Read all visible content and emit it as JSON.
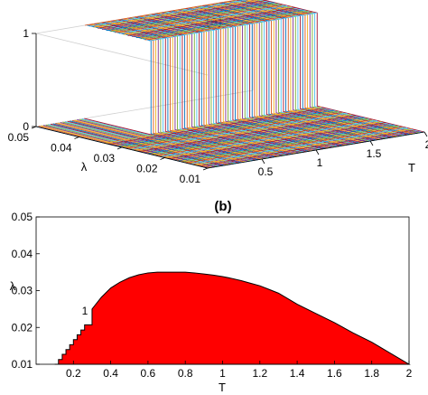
{
  "chart_data": [
    {
      "panel_label": "(a)",
      "type": "surface-3d",
      "x_axis": {
        "label": "T",
        "range": [
          0,
          2
        ],
        "ticks": [
          "0.5",
          "1",
          "1.5",
          "2"
        ]
      },
      "y_axis": {
        "label": "λ",
        "range": [
          0.01,
          0.05
        ],
        "ticks": [
          "0.05",
          "0.04",
          "0.03",
          "0.02",
          "0.01"
        ]
      },
      "z_axis": {
        "range": [
          0,
          1
        ],
        "ticks": [
          "1",
          "0"
        ]
      },
      "surface": {
        "low_value": 0,
        "high_value": 1,
        "step_at_lambda": 0.035,
        "step_T_range": [
          0.45,
          2
        ]
      },
      "colors": [
        "#0072bd",
        "#d95319",
        "#edb120",
        "#7e2f8e",
        "#77ac30",
        "#4dbeee",
        "#a2142f"
      ]
    },
    {
      "panel_label": "(b)",
      "type": "area",
      "x_axis": {
        "label": "T",
        "range": [
          0,
          2
        ],
        "ticks": [
          "0.2",
          "0.4",
          "0.6",
          "0.8",
          "1",
          "1.2",
          "1.4",
          "1.6",
          "1.8",
          "2"
        ]
      },
      "y_axis": {
        "label": "λ",
        "range": [
          0.01,
          0.05
        ],
        "ticks": [
          "0.01",
          "0.02",
          "0.03",
          "0.04",
          "0.05"
        ]
      },
      "region_value_label": "1",
      "fill_color": "#ff0000",
      "boundary": {
        "x": [
          0.1,
          0.12,
          0.14,
          0.16,
          0.18,
          0.2,
          0.22,
          0.24,
          0.26,
          0.3,
          0.35,
          0.4,
          0.45,
          0.5,
          0.55,
          0.6,
          0.65,
          0.7,
          0.8,
          0.85,
          0.9,
          0.95,
          1.0,
          1.05,
          1.1,
          1.15,
          1.2,
          1.25,
          1.3,
          1.35,
          1.4,
          1.5,
          1.6,
          1.7,
          1.8,
          1.9,
          2.0
        ],
        "y": [
          0.01,
          0.0113,
          0.0127,
          0.014,
          0.0153,
          0.0167,
          0.018,
          0.0193,
          0.0207,
          0.025,
          0.0282,
          0.0307,
          0.0323,
          0.0335,
          0.0343,
          0.0348,
          0.035,
          0.035,
          0.035,
          0.0348,
          0.0345,
          0.0342,
          0.0338,
          0.0333,
          0.0327,
          0.032,
          0.0313,
          0.0303,
          0.0293,
          0.0278,
          0.0263,
          0.0238,
          0.0213,
          0.0185,
          0.016,
          0.013,
          0.01
        ]
      }
    }
  ]
}
